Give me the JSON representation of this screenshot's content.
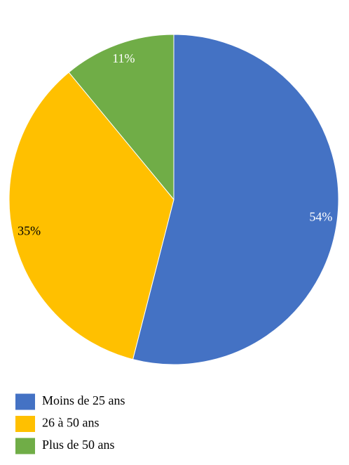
{
  "chart_data": {
    "type": "pie",
    "categories": [
      "Moins de 25 ans",
      "26 à 50 ans",
      "Plus de 50 ans"
    ],
    "values": [
      54,
      35,
      11
    ],
    "value_labels": [
      "54%",
      "35%",
      "11%"
    ],
    "colors": [
      "#4472c4",
      "#ffc000",
      "#70ad47"
    ],
    "legend": "bottom-left"
  }
}
